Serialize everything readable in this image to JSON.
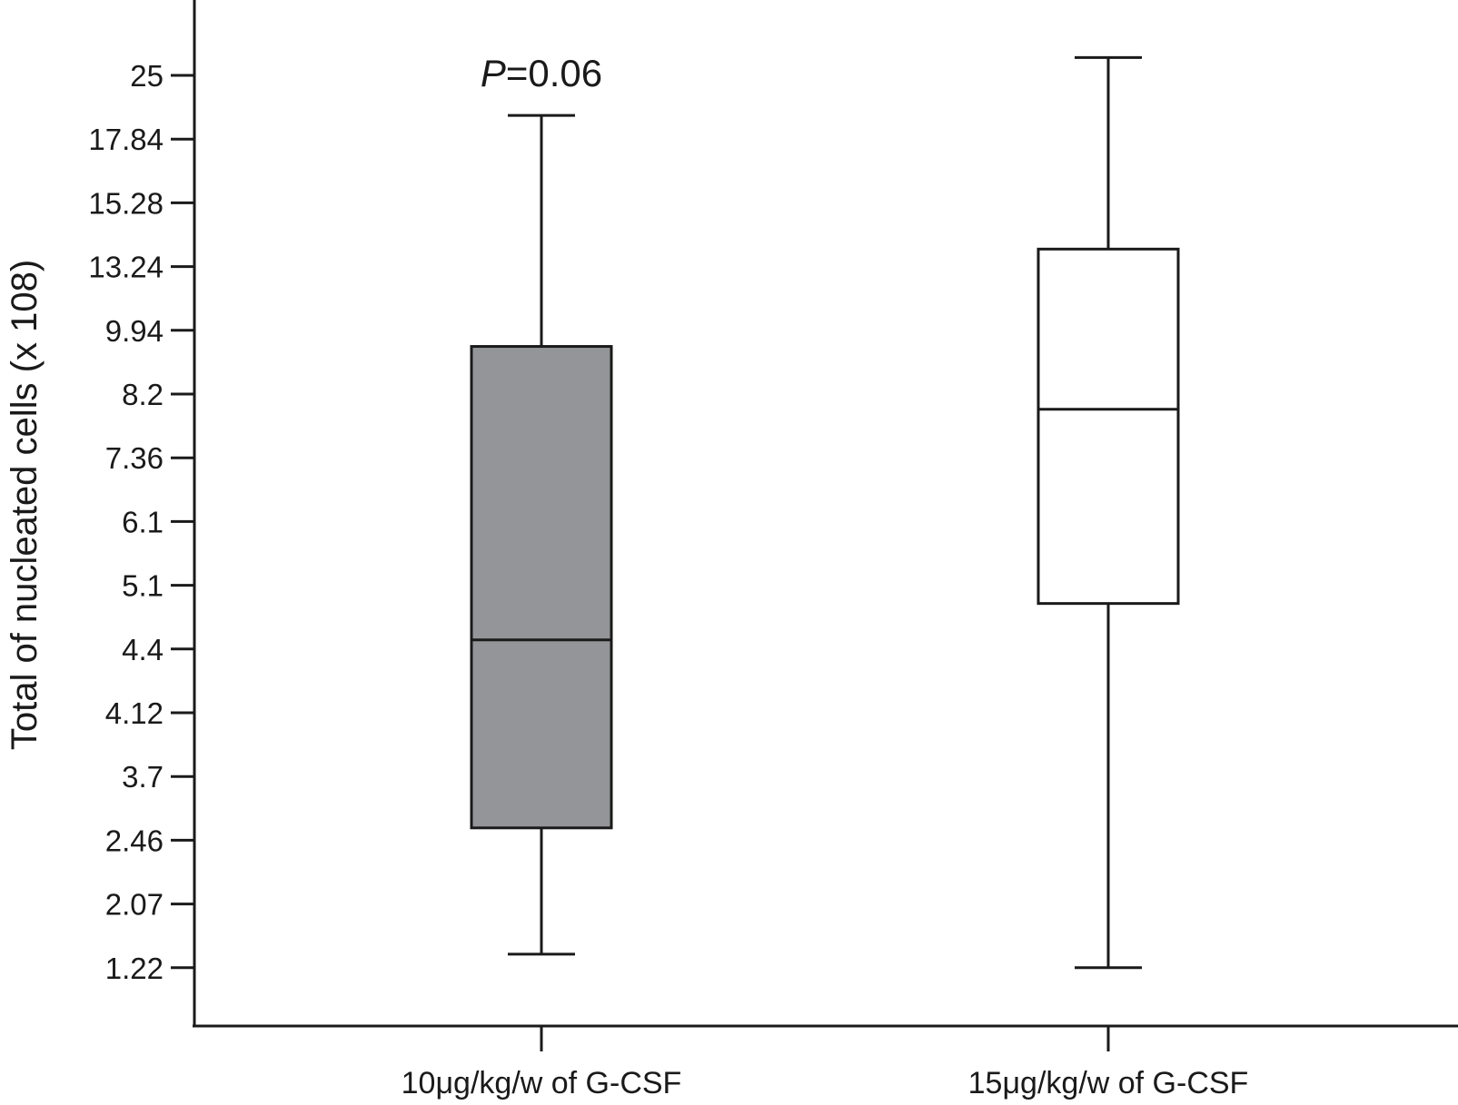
{
  "chart_data": {
    "type": "box",
    "ylabel": "Total of nucleated cells (x 108)",
    "xlabel": "",
    "y_ticks": [
      "25",
      "17.84",
      "15.28",
      "13.24",
      "9.94",
      "8.2",
      "7.36",
      "6.1",
      "5.1",
      "4.4",
      "4.12",
      "3.7",
      "2.46",
      "2.07",
      "1.22"
    ],
    "y_scale": "rank (labels are evenly spaced, non-linear values)",
    "categories": [
      "10μg/kg/w of G-CSF",
      "15μg/kg/w of G-CSF"
    ],
    "boxes": [
      {
        "category": "10μg/kg/w of G-CSF",
        "whisker_low": 1.4,
        "q1": 2.7,
        "median": 4.5,
        "q3": 9.5,
        "whisker_high": 20.5,
        "fill": "#939598"
      },
      {
        "category": "15μg/kg/w of G-CSF",
        "whisker_low": 1.22,
        "q1": 4.9,
        "median": 8.0,
        "q3": 13.8,
        "whisker_high": 27,
        "fill": "#ffffff"
      }
    ],
    "annotation": {
      "italic": "P",
      "text": "=0.06",
      "category": "10μg/kg/w of G-CSF"
    },
    "grid": false,
    "legend": "none"
  }
}
